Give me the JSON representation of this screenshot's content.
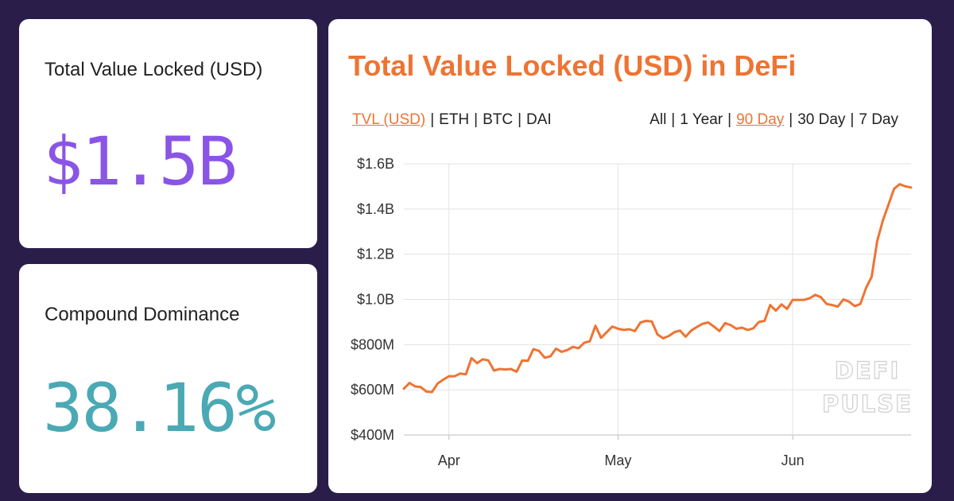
{
  "cards": {
    "tvl": {
      "label": "Total Value Locked (USD)",
      "value": "$1.5B",
      "value_color": "#8a55e6"
    },
    "dominance": {
      "label": "Compound Dominance",
      "value": "38.16%",
      "value_color": "#4aa9b5"
    }
  },
  "chart_panel": {
    "title": "Total Value Locked (USD) in DeFi",
    "title_color": "#ee7433",
    "unit_toggles": [
      {
        "label": "TVL (USD)",
        "active": true
      },
      {
        "label": "ETH",
        "active": false
      },
      {
        "label": "BTC",
        "active": false
      },
      {
        "label": "DAI",
        "active": false
      }
    ],
    "range_toggles": [
      {
        "label": "All",
        "active": false
      },
      {
        "label": "1 Year",
        "active": false
      },
      {
        "label": "90 Day",
        "active": true
      },
      {
        "label": "30 Day",
        "active": false
      },
      {
        "label": "7 Day",
        "active": false
      }
    ],
    "active_color": "#ee7433",
    "separator": "|",
    "watermark_lines": [
      "DEFI",
      "PULSE"
    ]
  },
  "chart_data": {
    "type": "line",
    "title": "Total Value Locked (USD) in DeFi",
    "xlabel": "",
    "ylabel": "",
    "ylim": [
      400,
      1600
    ],
    "y_ticks": [
      400,
      600,
      800,
      1000,
      1200,
      1400,
      1600
    ],
    "y_tick_labels": [
      "$400M",
      "$600M",
      "$800M",
      "$1.0B",
      "$1.2B",
      "$1.4B",
      "$1.6B"
    ],
    "xlim": [
      "2020-03-24",
      "2020-06-22"
    ],
    "x_ticks": [
      "2020-04-01",
      "2020-05-01",
      "2020-06-01"
    ],
    "x_tick_labels": [
      "Apr",
      "May",
      "Jun"
    ],
    "grid": true,
    "line_color": "#ee7433",
    "series": [
      {
        "x": [
          "2020-03-24",
          "2020-03-25",
          "2020-03-26",
          "2020-03-27",
          "2020-03-28",
          "2020-03-29",
          "2020-03-30",
          "2020-03-31",
          "2020-04-01",
          "2020-04-02",
          "2020-04-03",
          "2020-04-04",
          "2020-04-05",
          "2020-04-06",
          "2020-04-07",
          "2020-04-08",
          "2020-04-09",
          "2020-04-10",
          "2020-04-11",
          "2020-04-12",
          "2020-04-13",
          "2020-04-14",
          "2020-04-15",
          "2020-04-16",
          "2020-04-17",
          "2020-04-18",
          "2020-04-19",
          "2020-04-20",
          "2020-04-21",
          "2020-04-22",
          "2020-04-23",
          "2020-04-24",
          "2020-04-25",
          "2020-04-26",
          "2020-04-27",
          "2020-04-28",
          "2020-04-29",
          "2020-04-30",
          "2020-05-01",
          "2020-05-02",
          "2020-05-03",
          "2020-05-04",
          "2020-05-05",
          "2020-05-06",
          "2020-05-07",
          "2020-05-08",
          "2020-05-09",
          "2020-05-10",
          "2020-05-11",
          "2020-05-12",
          "2020-05-13",
          "2020-05-14",
          "2020-05-15",
          "2020-05-16",
          "2020-05-17",
          "2020-05-18",
          "2020-05-19",
          "2020-05-20",
          "2020-05-21",
          "2020-05-22",
          "2020-05-23",
          "2020-05-24",
          "2020-05-25",
          "2020-05-26",
          "2020-05-27",
          "2020-05-28",
          "2020-05-29",
          "2020-05-30",
          "2020-05-31",
          "2020-06-01",
          "2020-06-02",
          "2020-06-03",
          "2020-06-04",
          "2020-06-05",
          "2020-06-06",
          "2020-06-07",
          "2020-06-08",
          "2020-06-09",
          "2020-06-10",
          "2020-06-11",
          "2020-06-12",
          "2020-06-13",
          "2020-06-14",
          "2020-06-15",
          "2020-06-16",
          "2020-06-17",
          "2020-06-18",
          "2020-06-19",
          "2020-06-20",
          "2020-06-21",
          "2020-06-22"
        ],
        "values": [
          605,
          630,
          615,
          612,
          592,
          590,
          628,
          645,
          660,
          660,
          672,
          668,
          740,
          718,
          735,
          730,
          685,
          692,
          690,
          692,
          680,
          730,
          728,
          780,
          772,
          742,
          748,
          782,
          768,
          776,
          790,
          784,
          808,
          815,
          883,
          830,
          855,
          880,
          870,
          865,
          868,
          860,
          898,
          905,
          902,
          845,
          828,
          838,
          855,
          862,
          835,
          862,
          878,
          892,
          898,
          880,
          860,
          895,
          886,
          870,
          875,
          865,
          872,
          900,
          905,
          975,
          950,
          978,
          958,
          998,
          998,
          998,
          1005,
          1020,
          1010,
          980,
          975,
          968,
          1000,
          990,
          970,
          980,
          1050,
          1100,
          1260,
          1350,
          1420,
          1490,
          1510,
          1500,
          1495
        ]
      }
    ]
  }
}
